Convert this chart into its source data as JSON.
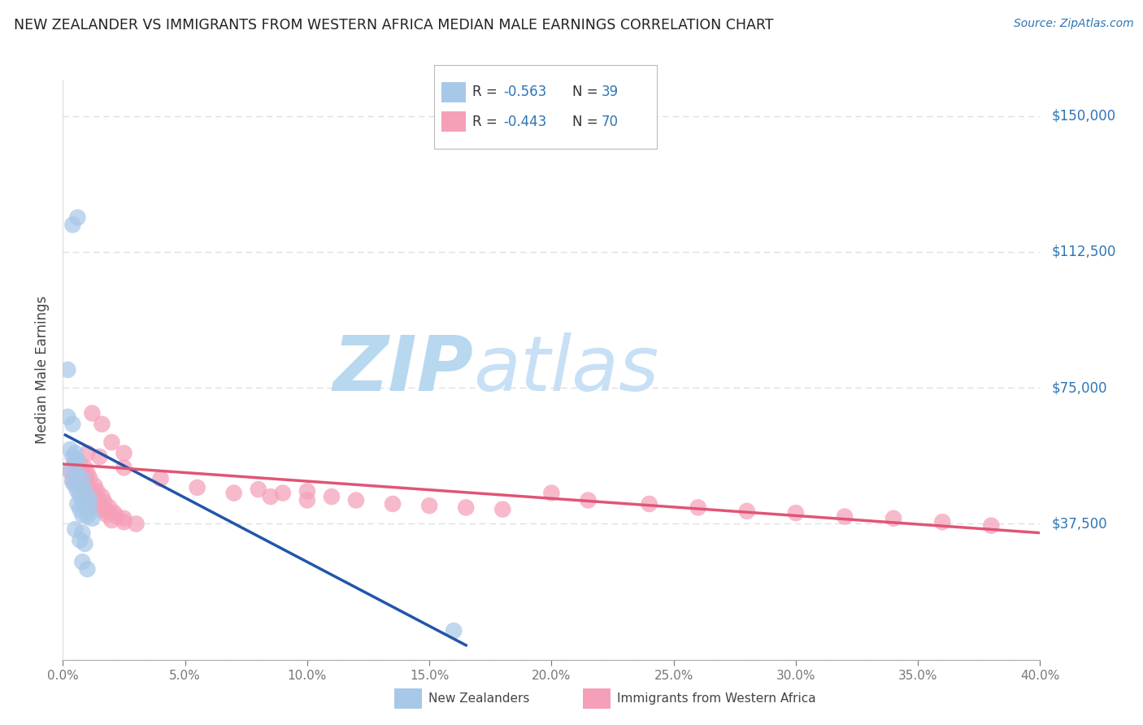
{
  "title": "NEW ZEALANDER VS IMMIGRANTS FROM WESTERN AFRICA MEDIAN MALE EARNINGS CORRELATION CHART",
  "source": "Source: ZipAtlas.com",
  "ylabel": "Median Male Earnings",
  "x_min": 0.0,
  "x_max": 0.4,
  "y_min": 0,
  "y_max": 160000,
  "y_ticks": [
    0,
    37500,
    75000,
    112500,
    150000
  ],
  "y_tick_labels": [
    "",
    "$37,500",
    "$75,000",
    "$112,500",
    "$150,000"
  ],
  "x_ticks": [
    0.0,
    0.05,
    0.1,
    0.15,
    0.2,
    0.25,
    0.3,
    0.35,
    0.4
  ],
  "x_tick_labels": [
    "0.0%",
    "5.0%",
    "10.0%",
    "15.0%",
    "20.0%",
    "25.0%",
    "30.0%",
    "35.0%",
    "40.0%"
  ],
  "blue_color": "#a8c8e8",
  "pink_color": "#f5a0b8",
  "blue_line_color": "#2255aa",
  "pink_line_color": "#e05575",
  "blue_label": "New Zealanders",
  "pink_label": "Immigrants from Western Africa",
  "legend_r1": "-0.563",
  "legend_n1": "39",
  "legend_r2": "-0.443",
  "legend_n2": "70",
  "blue_scatter_x": [
    0.004,
    0.006,
    0.002,
    0.002,
    0.004,
    0.003,
    0.005,
    0.004,
    0.006,
    0.005,
    0.003,
    0.006,
    0.008,
    0.004,
    0.005,
    0.007,
    0.009,
    0.006,
    0.008,
    0.007,
    0.009,
    0.011,
    0.008,
    0.01,
    0.006,
    0.009,
    0.011,
    0.007,
    0.01,
    0.008,
    0.01,
    0.012,
    0.005,
    0.008,
    0.007,
    0.009,
    0.008,
    0.01,
    0.16
  ],
  "blue_scatter_y": [
    120000,
    122000,
    80000,
    67000,
    65000,
    58000,
    57000,
    56000,
    55000,
    54000,
    52000,
    51000,
    50000,
    49000,
    48000,
    47500,
    47000,
    46500,
    46000,
    45500,
    45000,
    44500,
    44000,
    43500,
    43000,
    42500,
    42000,
    41500,
    41000,
    40000,
    39500,
    39000,
    36000,
    35000,
    33000,
    32000,
    27000,
    25000,
    8000
  ],
  "pink_scatter_x": [
    0.003,
    0.005,
    0.007,
    0.004,
    0.006,
    0.008,
    0.005,
    0.007,
    0.009,
    0.006,
    0.008,
    0.01,
    0.007,
    0.009,
    0.011,
    0.008,
    0.01,
    0.013,
    0.009,
    0.011,
    0.014,
    0.01,
    0.013,
    0.016,
    0.011,
    0.014,
    0.017,
    0.013,
    0.016,
    0.019,
    0.015,
    0.018,
    0.021,
    0.018,
    0.022,
    0.025,
    0.02,
    0.025,
    0.03,
    0.012,
    0.016,
    0.02,
    0.025,
    0.08,
    0.09,
    0.1,
    0.11,
    0.12,
    0.135,
    0.15,
    0.165,
    0.18,
    0.2,
    0.215,
    0.24,
    0.26,
    0.28,
    0.3,
    0.32,
    0.34,
    0.36,
    0.38,
    0.01,
    0.015,
    0.025,
    0.04,
    0.055,
    0.07,
    0.085,
    0.1
  ],
  "pink_scatter_y": [
    52000,
    51000,
    50000,
    49500,
    49000,
    48500,
    55000,
    54000,
    53000,
    52500,
    52000,
    51500,
    51000,
    50500,
    50000,
    49000,
    48500,
    48000,
    47500,
    47000,
    46500,
    46000,
    45500,
    45000,
    44500,
    44000,
    43500,
    43000,
    42500,
    42000,
    41500,
    41000,
    40500,
    40000,
    39500,
    39000,
    38500,
    38000,
    37500,
    68000,
    65000,
    60000,
    57000,
    47000,
    46000,
    46500,
    45000,
    44000,
    43000,
    42500,
    42000,
    41500,
    46000,
    44000,
    43000,
    42000,
    41000,
    40500,
    39500,
    39000,
    38000,
    37000,
    57000,
    56000,
    53000,
    50000,
    47500,
    46000,
    45000,
    44000
  ],
  "blue_trend_x": [
    0.001,
    0.165
  ],
  "blue_trend_y": [
    62000,
    4000
  ],
  "pink_trend_x": [
    0.0,
    0.4
  ],
  "pink_trend_y": [
    54000,
    35000
  ],
  "watermark_zip": "ZIP",
  "watermark_atlas": "atlas",
  "watermark_color_zip": "#b8d8f0",
  "watermark_color_atlas": "#c8e0f5",
  "bg_color": "#ffffff",
  "grid_color": "#dddddd",
  "title_color": "#222222",
  "source_color": "#2e75b6",
  "label_color": "#2e75b6",
  "tick_color": "#777777"
}
